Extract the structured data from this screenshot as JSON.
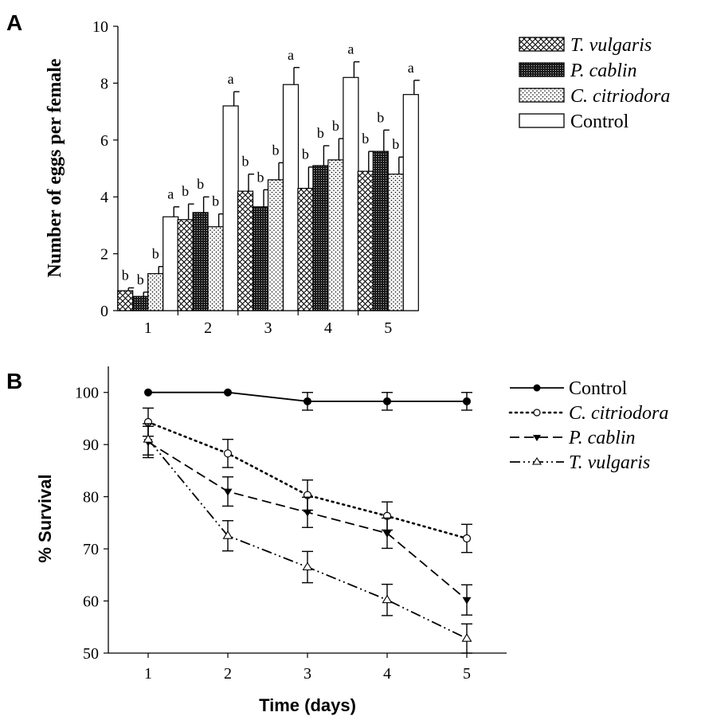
{
  "chart_data": [
    {
      "panel": "A",
      "type": "bar",
      "ylabel": "Number of eggs per female",
      "xlabel": "",
      "ylim": [
        0,
        10
      ],
      "yticks": [
        "0",
        "2",
        "4",
        "6",
        "8",
        "10"
      ],
      "categories": [
        "1",
        "2",
        "3",
        "4",
        "5"
      ],
      "legend_position": "top-right",
      "series": [
        {
          "name": "T. vulgaris",
          "italic": true,
          "pattern": "crosshatch",
          "values": [
            0.7,
            3.2,
            4.2,
            4.3,
            4.9
          ],
          "errors": [
            0.1,
            0.55,
            0.6,
            0.75,
            0.7
          ],
          "labels": [
            "b",
            "b",
            "b",
            "b",
            "b"
          ]
        },
        {
          "name": "P. cablin",
          "italic": true,
          "pattern": "dense-dots",
          "values": [
            0.5,
            3.45,
            3.65,
            5.1,
            5.6
          ],
          "errors": [
            0.15,
            0.55,
            0.6,
            0.7,
            0.75
          ],
          "labels": [
            "b",
            "b",
            "b",
            "b",
            "b"
          ]
        },
        {
          "name": "C. citriodora",
          "italic": true,
          "pattern": "sparse-dots",
          "values": [
            1.3,
            2.95,
            4.6,
            5.3,
            4.8
          ],
          "errors": [
            0.25,
            0.45,
            0.6,
            0.75,
            0.6
          ],
          "labels": [
            "b",
            "b",
            "b",
            "b",
            "b"
          ]
        },
        {
          "name": "Control",
          "italic": false,
          "pattern": "white",
          "values": [
            3.3,
            7.2,
            7.95,
            8.2,
            7.6
          ],
          "errors": [
            0.35,
            0.5,
            0.6,
            0.55,
            0.5
          ],
          "labels": [
            "a",
            "a",
            "a",
            "a",
            "a"
          ]
        }
      ]
    },
    {
      "panel": "B",
      "type": "line",
      "ylabel": "% Survival",
      "xlabel": "Time (days)",
      "x": [
        1,
        2,
        3,
        4,
        5
      ],
      "xlim": [
        0.5,
        5.5
      ],
      "ylim": [
        50,
        105
      ],
      "yticks": [
        "50",
        "60",
        "70",
        "80",
        "90",
        "100"
      ],
      "xticks": [
        "1",
        "2",
        "3",
        "4",
        "5"
      ],
      "legend_position": "top-right",
      "series": [
        {
          "name": "Control",
          "italic": false,
          "marker": "filled-circle",
          "dash": "solid",
          "values": [
            100,
            100,
            98.3,
            98.3,
            98.3
          ],
          "errors": [
            0,
            0,
            1.7,
            1.7,
            1.7
          ]
        },
        {
          "name": "C. citriodora",
          "italic": true,
          "marker": "open-circle",
          "dash": "dotted",
          "values": [
            94.3,
            88.3,
            80.3,
            76.3,
            72
          ],
          "errors": [
            2.7,
            2.7,
            2.9,
            2.7,
            2.7
          ]
        },
        {
          "name": "P. cablin",
          "italic": true,
          "marker": "filled-triangle-down",
          "dash": "dashed",
          "values": [
            90.5,
            81,
            77,
            73,
            60.2
          ],
          "errors": [
            3.0,
            2.8,
            2.9,
            2.9,
            2.9
          ]
        },
        {
          "name": "T. vulgaris",
          "italic": true,
          "marker": "open-triangle-up",
          "dash": "dash-dot-dot",
          "values": [
            91,
            72.5,
            66.5,
            60.2,
            52.8
          ],
          "errors": [
            3.0,
            2.9,
            3.0,
            3.0,
            2.8
          ]
        }
      ]
    }
  ]
}
